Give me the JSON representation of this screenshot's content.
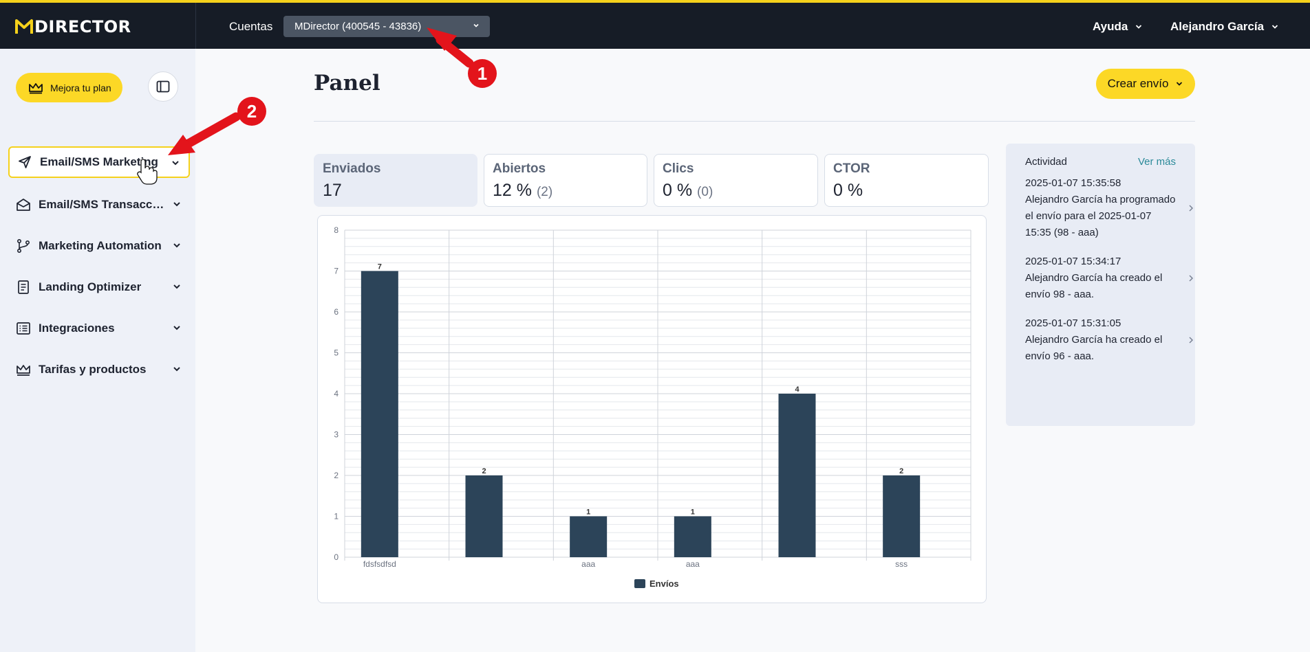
{
  "topbar": {
    "logo_text": "DIRECTOR",
    "accounts_label": "Cuentas",
    "account_selected": "MDirector (400545 - 43836)",
    "help_label": "Ayuda",
    "user_name": "Alejandro García"
  },
  "sidebar": {
    "upgrade_label": "Mejora tu plan",
    "items": [
      {
        "label": "Email/SMS Marketing",
        "icon": "send-icon"
      },
      {
        "label": "Email/SMS Transaccionales",
        "icon": "envelope-open-icon"
      },
      {
        "label": "Marketing Automation",
        "icon": "branch-icon"
      },
      {
        "label": "Landing Optimizer",
        "icon": "document-icon"
      },
      {
        "label": "Integraciones",
        "icon": "list-icon"
      },
      {
        "label": "Tarifas y productos",
        "icon": "crown-icon"
      }
    ]
  },
  "main": {
    "title": "Panel",
    "create_label": "Crear envío",
    "kpis": [
      {
        "label": "Enviados",
        "value": "17",
        "sub": ""
      },
      {
        "label": "Abiertos",
        "value": "12 %",
        "sub": "(2)"
      },
      {
        "label": "Clics",
        "value": "0 %",
        "sub": "(0)"
      },
      {
        "label": "CTOR",
        "value": "0 %",
        "sub": ""
      }
    ]
  },
  "chart_data": {
    "type": "bar",
    "categories": [
      "fdsfsdfsd",
      "",
      "aaa",
      "aaa",
      "",
      "sss"
    ],
    "series": [
      {
        "name": "Envíos",
        "values": [
          7,
          2,
          1,
          1,
          4,
          2
        ]
      }
    ],
    "ylim": [
      0,
      8
    ],
    "yticks": [
      "0",
      "1",
      "2",
      "3",
      "4",
      "5",
      "6",
      "7",
      "8"
    ],
    "legend": "bottom",
    "color": "#2c4459"
  },
  "activity": {
    "title": "Actividad",
    "more_label": "Ver más",
    "items": [
      {
        "time": "2025-01-07 15:35:58",
        "text": "Alejandro García ha programado el envío para el 2025-01-07 15:35 (98 - aaa)"
      },
      {
        "time": "2025-01-07 15:34:17",
        "text": "Alejandro García ha creado el envío 98 - aaa."
      },
      {
        "time": "2025-01-07 15:31:05",
        "text": "Alejandro García ha creado el envío 96 - aaa."
      }
    ]
  },
  "annotations": {
    "badge_1": "1",
    "badge_2": "2"
  }
}
